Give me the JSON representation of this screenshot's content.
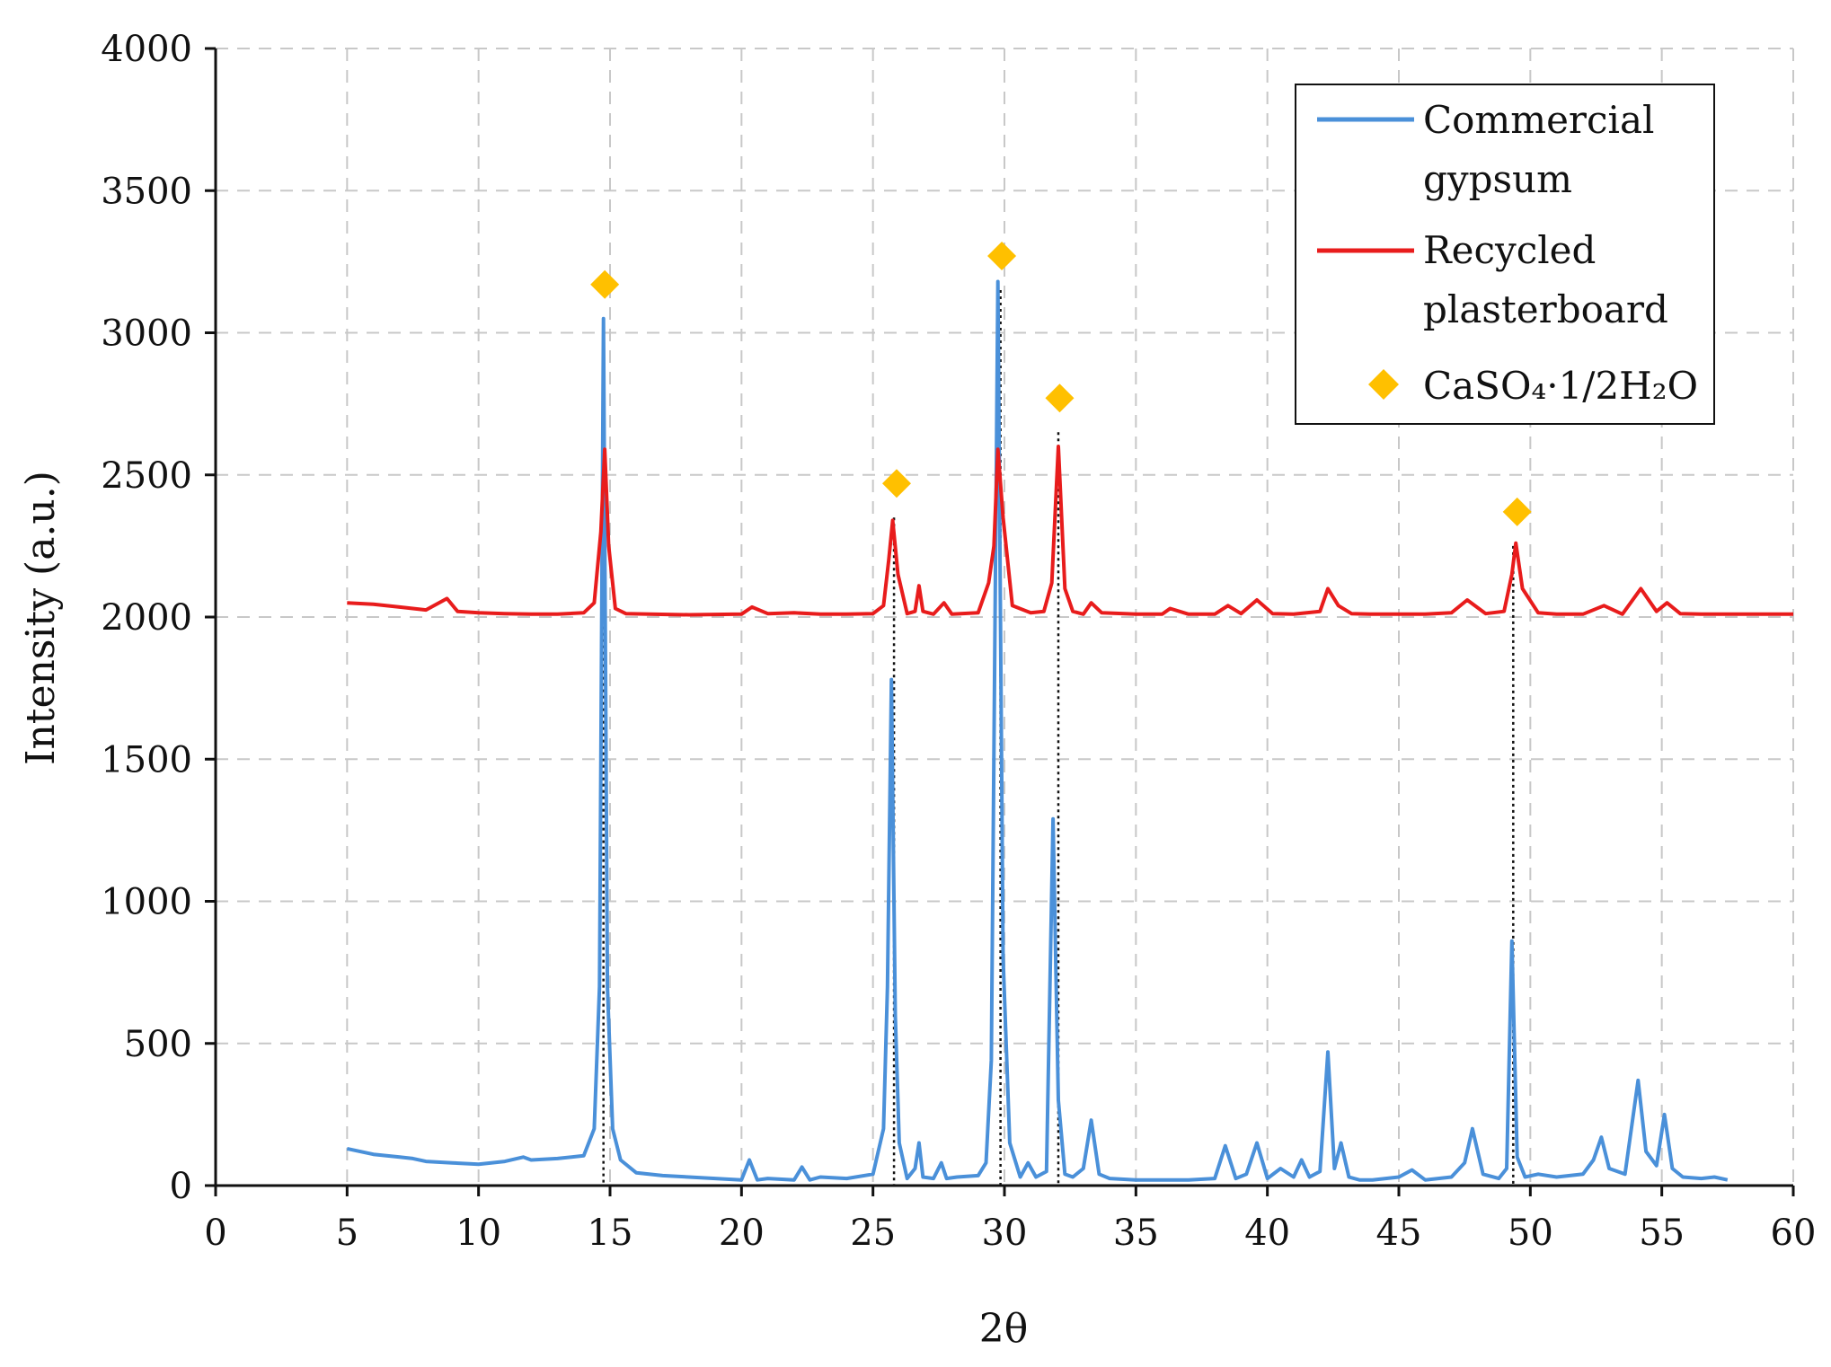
{
  "chart_data": {
    "type": "line",
    "title": "",
    "xlabel": "2θ",
    "ylabel": "Intensity (a.u.)",
    "xlim": [
      0,
      60
    ],
    "ylim": [
      0,
      4000
    ],
    "xticks": [
      0,
      5,
      10,
      15,
      20,
      25,
      30,
      35,
      40,
      45,
      50,
      55,
      60
    ],
    "yticks": [
      0,
      500,
      1000,
      1500,
      2000,
      2500,
      3000,
      3500,
      4000
    ],
    "grid": true,
    "legend": {
      "placement": "top-right"
    },
    "series": [
      {
        "name": "Commercial gypsum",
        "color": "#4a90d9",
        "x": [
          5,
          6,
          7,
          7.5,
          8,
          9,
          10,
          11,
          11.7,
          12,
          13,
          14,
          14.4,
          14.6,
          14.75,
          14.9,
          15.1,
          15.4,
          16,
          17,
          18,
          19,
          20,
          20.3,
          20.6,
          21,
          22,
          22.3,
          22.6,
          23,
          24,
          25,
          25.4,
          25.55,
          25.7,
          25.85,
          26,
          26.3,
          26.6,
          26.75,
          26.9,
          27.3,
          27.6,
          27.8,
          28.2,
          29,
          29.3,
          29.5,
          29.75,
          29.95,
          30.2,
          30.6,
          30.9,
          31.2,
          31.6,
          31.85,
          32.05,
          32.3,
          32.6,
          33,
          33.3,
          33.6,
          34,
          35,
          36,
          37,
          38,
          38.4,
          38.8,
          39.2,
          39.6,
          40,
          40.5,
          41,
          41.3,
          41.6,
          42,
          42.3,
          42.55,
          42.8,
          43.1,
          43.5,
          44,
          45,
          45.5,
          46,
          47,
          47.5,
          47.8,
          48.2,
          48.8,
          49.1,
          49.3,
          49.5,
          49.8,
          50.3,
          51,
          52,
          52.4,
          52.7,
          53,
          53.6,
          54.1,
          54.4,
          54.8,
          55.1,
          55.4,
          55.8,
          56.5,
          57,
          57.5
        ],
        "y": [
          130,
          110,
          100,
          95,
          85,
          80,
          75,
          85,
          100,
          90,
          95,
          105,
          200,
          700,
          3050,
          700,
          200,
          90,
          45,
          35,
          30,
          25,
          20,
          90,
          20,
          25,
          20,
          65,
          20,
          30,
          25,
          40,
          200,
          700,
          1780,
          600,
          150,
          25,
          60,
          150,
          30,
          25,
          80,
          25,
          30,
          35,
          80,
          440,
          3180,
          800,
          150,
          30,
          80,
          30,
          50,
          1290,
          300,
          40,
          30,
          60,
          230,
          40,
          25,
          20,
          20,
          20,
          25,
          140,
          25,
          40,
          150,
          25,
          60,
          30,
          90,
          30,
          50,
          470,
          60,
          150,
          30,
          20,
          20,
          30,
          55,
          20,
          30,
          80,
          200,
          40,
          25,
          60,
          860,
          100,
          30,
          40,
          30,
          40,
          90,
          170,
          60,
          40,
          370,
          120,
          70,
          250,
          60,
          30,
          25,
          30,
          20
        ],
        "points_count": 111
      },
      {
        "name": "Recycled plasterboard",
        "color": "#e81c1c",
        "x": [
          5,
          6,
          7,
          8,
          8.8,
          9.2,
          10,
          11,
          12,
          13,
          14,
          14.4,
          14.65,
          14.8,
          14.95,
          15.2,
          15.6,
          16.5,
          18,
          20,
          20.4,
          21,
          22,
          23,
          24,
          25,
          25.4,
          25.6,
          25.75,
          25.95,
          26.3,
          26.6,
          26.75,
          26.9,
          27.3,
          27.7,
          28,
          29,
          29.4,
          29.6,
          29.75,
          29.95,
          30.3,
          31,
          31.5,
          31.8,
          32.05,
          32.3,
          32.6,
          33,
          33.3,
          33.7,
          35,
          36,
          36.3,
          37,
          38,
          38.5,
          39,
          39.6,
          40.2,
          41,
          42,
          42.3,
          42.7,
          43.2,
          44,
          45,
          46,
          47,
          47.6,
          48.3,
          49,
          49.3,
          49.45,
          49.7,
          50.3,
          51,
          52,
          52.8,
          53.5,
          54.2,
          54.8,
          55.2,
          55.7,
          56.5,
          58,
          60
        ],
        "y": [
          2050,
          2045,
          2035,
          2025,
          2065,
          2020,
          2015,
          2012,
          2010,
          2010,
          2015,
          2050,
          2300,
          2590,
          2250,
          2030,
          2012,
          2010,
          2008,
          2010,
          2035,
          2012,
          2015,
          2010,
          2010,
          2012,
          2040,
          2200,
          2340,
          2150,
          2012,
          2020,
          2110,
          2020,
          2010,
          2050,
          2010,
          2015,
          2120,
          2250,
          2590,
          2350,
          2040,
          2015,
          2020,
          2120,
          2600,
          2100,
          2020,
          2010,
          2050,
          2015,
          2010,
          2010,
          2030,
          2010,
          2010,
          2040,
          2012,
          2060,
          2012,
          2010,
          2020,
          2100,
          2040,
          2012,
          2010,
          2010,
          2010,
          2015,
          2060,
          2012,
          2020,
          2150,
          2260,
          2100,
          2015,
          2010,
          2010,
          2040,
          2010,
          2100,
          2020,
          2050,
          2012,
          2010,
          2010,
          2010
        ],
        "points_count": 88
      },
      {
        "name": "CaSO₄·1/2H₂O",
        "color": "#ffc000",
        "marker": "diamond",
        "x": [
          14.8,
          25.9,
          29.9,
          32.1,
          49.5
        ],
        "y": [
          3170,
          2470,
          3270,
          2770,
          2370
        ]
      }
    ],
    "reference_lines_x": [
      14.75,
      25.8,
      29.85,
      32.05,
      49.35
    ]
  }
}
